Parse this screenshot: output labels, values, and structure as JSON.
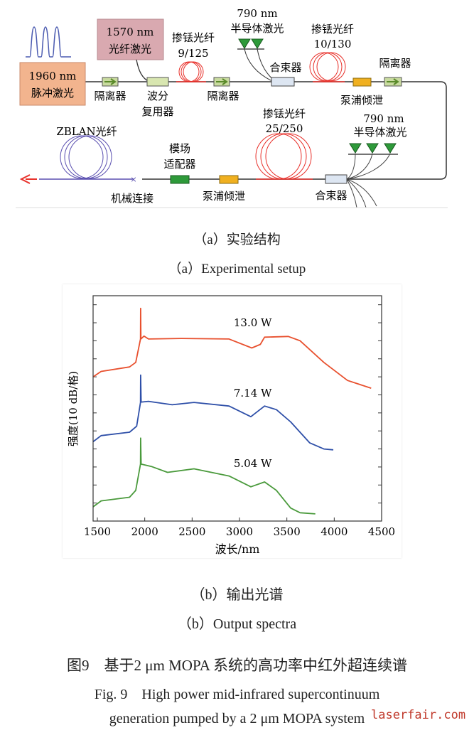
{
  "diagram": {
    "labels": {
      "seed_laser": [
        "1960 nm",
        "脉冲激光"
      ],
      "signal_laser": [
        "1570 nm",
        "光纤激光"
      ],
      "isolator": "隔离器",
      "wdm": [
        "波分",
        "复用器"
      ],
      "tdf1": [
        "掺铥光纤",
        "9/125"
      ],
      "diode_top": [
        "790 nm",
        "半导体激光"
      ],
      "combiner": "合束器",
      "tdf2": [
        "掺铥光纤",
        "10/130"
      ],
      "pump_dump": "泵浦倾泄",
      "diode_bottom": [
        "790 nm",
        "半导体激光"
      ],
      "tdf3": [
        "掺铥光纤",
        "25/250"
      ],
      "mode_adapter": [
        "模场",
        "适配器"
      ],
      "mech_splice": "机械连接",
      "zblan": "ZBLAN光纤"
    },
    "colors": {
      "seed": "#f2b48e",
      "signal": "#d9a9b0",
      "doped": "#e8302a",
      "zblan": "#5a4fb0",
      "diode": "#2e9a3a",
      "dump": "#f0b020"
    }
  },
  "captions": {
    "a_cn": "（a）实验结构",
    "a_en": "（a）Experimental setup",
    "b_cn": "（b）输出光谱",
    "b_en": "（b）Output spectra",
    "fig_cn": "图9　基于2 μm MOPA 系统的高功率中红外超连续谱",
    "fig_en_1": "Fig. 9　High power mid-infrared supercontinuum",
    "fig_en_2": "generation pumped by a 2 μm MOPA system"
  },
  "watermark": "laserfair.com",
  "chart_data": {
    "type": "line",
    "title": "",
    "xlabel": "波长/nm",
    "ylabel": "强度(10 dB/格)",
    "xlim": [
      1455,
      4500
    ],
    "ylim": [
      0,
      125
    ],
    "xticks": [
      1500,
      2000,
      2500,
      3000,
      3500,
      4000,
      4500
    ],
    "ytick_step_db": 10,
    "series": [
      {
        "name": "13.0 W",
        "color": "#e8502e",
        "label_at": [
          3140,
          108
        ],
        "points": [
          [
            1455,
            80
          ],
          [
            1540,
            83
          ],
          [
            1840,
            85.5
          ],
          [
            1905,
            88
          ],
          [
            1955,
            101
          ],
          [
            1957,
            118
          ],
          [
            1960,
            101
          ],
          [
            1992,
            102.6
          ],
          [
            2040,
            101
          ],
          [
            2390,
            101.3
          ],
          [
            2890,
            101
          ],
          [
            3130,
            96
          ],
          [
            3220,
            98
          ],
          [
            3265,
            102
          ],
          [
            3515,
            102.4
          ],
          [
            3640,
            100
          ],
          [
            3890,
            88
          ],
          [
            4140,
            78
          ],
          [
            4390,
            73.7
          ]
        ]
      },
      {
        "name": "7.14 W",
        "color": "#2e4fa8",
        "label_at": [
          3140,
          69
        ],
        "points": [
          [
            1455,
            44
          ],
          [
            1540,
            47.4
          ],
          [
            1840,
            49.3
          ],
          [
            1915,
            52.6
          ],
          [
            1955,
            65.8
          ],
          [
            1957,
            81
          ],
          [
            1962,
            66
          ],
          [
            2040,
            66.4
          ],
          [
            2290,
            64.5
          ],
          [
            2520,
            65.8
          ],
          [
            2890,
            63.8
          ],
          [
            3120,
            57.9
          ],
          [
            3265,
            63.8
          ],
          [
            3390,
            61.8
          ],
          [
            3540,
            55
          ],
          [
            3740,
            43.4
          ],
          [
            3890,
            40
          ],
          [
            3990,
            39.5
          ]
        ]
      },
      {
        "name": "5.04 W",
        "color": "#4a9a3c",
        "label_at": [
          3140,
          30
        ],
        "points": [
          [
            1455,
            7.9
          ],
          [
            1540,
            11.2
          ],
          [
            1840,
            13.2
          ],
          [
            1905,
            17
          ],
          [
            1955,
            31.6
          ],
          [
            1957,
            46
          ],
          [
            1962,
            31.6
          ],
          [
            2070,
            30.3
          ],
          [
            2240,
            27
          ],
          [
            2520,
            29
          ],
          [
            2890,
            25
          ],
          [
            3120,
            19
          ],
          [
            3265,
            21.7
          ],
          [
            3390,
            17
          ],
          [
            3540,
            7.2
          ],
          [
            3640,
            4.6
          ],
          [
            3800,
            4
          ]
        ]
      }
    ]
  }
}
